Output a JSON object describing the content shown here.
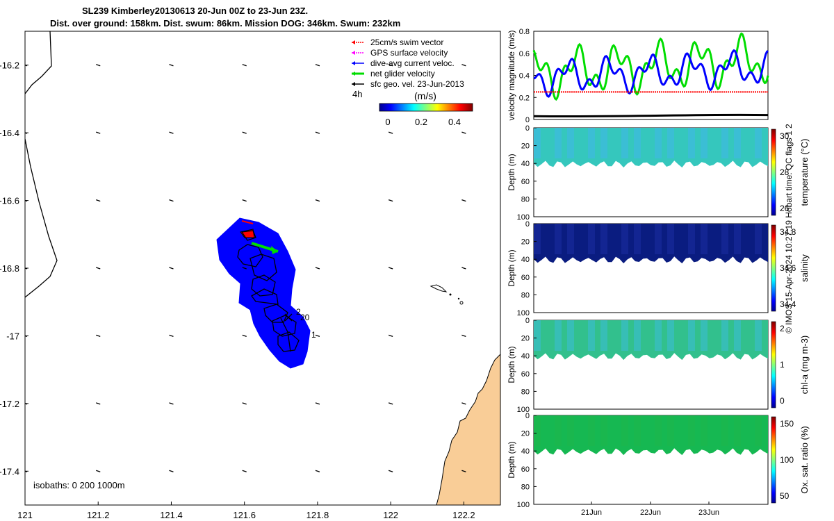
{
  "header": {
    "line1": "SL239 Kimberley20130613 20-Jun 00Z to 23-Jun 23Z.",
    "line2": "Dist. over ground: 158km. Dist. swum: 86km. Mission DOG: 346km. Swum: 232km"
  },
  "legend": {
    "items": [
      {
        "label": "25cm/s swim vector",
        "color": "#ff0000"
      },
      {
        "label": "GPS surface velocity",
        "color": "#ff00ff"
      },
      {
        "label": "dive-avg current veloc.",
        "color": "#0000ff"
      },
      {
        "label": "net glider velocity",
        "color": "#00dd00"
      },
      {
        "label": "sfc geo. vel. 23-Jun-2013",
        "color": "#000000"
      }
    ],
    "time_label": "4h"
  },
  "colorbar": {
    "label": "(m/s)",
    "ticks": [
      "0",
      "0.2",
      "0.4"
    ]
  },
  "isobaths_label": "isobaths: 0   200  1000m",
  "copyright": "© IMOS 15-Apr-2024 10:27:19 Hobart time. QC flags 1  2",
  "chart_data": [
    {
      "type": "scatter",
      "name": "map",
      "xlim": [
        121.0,
        122.3
      ],
      "ylim": [
        -17.5,
        -16.1
      ],
      "xticks": [
        "121",
        "121.2",
        "121.4",
        "121.6",
        "121.8",
        "122",
        "122.2"
      ],
      "yticks": [
        "-16.2",
        "-16.4",
        "-16.6",
        "-16.8",
        "-17",
        "-17.2",
        "-17.4"
      ],
      "annotations": [
        "2",
        "20",
        "1"
      ]
    },
    {
      "type": "line",
      "name": "velocity",
      "ylabel": "velocity magnitude (m/s)",
      "ylim": [
        0,
        0.8
      ],
      "yticks": [
        "0",
        "0.2",
        "0.4",
        "0.6",
        "0.8"
      ],
      "series_colors": [
        "#00dd00",
        "#0000ff",
        "#ff0000",
        "#000000"
      ]
    },
    {
      "type": "heatmap",
      "name": "temperature",
      "ylabel": "Depth (m)",
      "clabel": "temperature (°C)",
      "cticks": [
        "26",
        "28",
        "30"
      ],
      "yticks": [
        "0",
        "20",
        "40",
        "60",
        "80",
        "100"
      ]
    },
    {
      "type": "heatmap",
      "name": "salinity",
      "ylabel": "Depth (m)",
      "clabel": "salinity",
      "cticks": [
        "34.4",
        "34.6",
        "34.8"
      ],
      "yticks": [
        "0",
        "20",
        "40",
        "60",
        "80",
        "100"
      ]
    },
    {
      "type": "heatmap",
      "name": "chla",
      "ylabel": "Depth (m)",
      "clabel": "chl-a (mg m-3)",
      "cticks": [
        "0",
        "1",
        "2"
      ],
      "yticks": [
        "0",
        "20",
        "40",
        "60",
        "80",
        "100"
      ]
    },
    {
      "type": "heatmap",
      "name": "oxygen",
      "ylabel": "Depth (m)",
      "clabel": "Ox. sat. ratio (%)",
      "cticks": [
        "50",
        "100",
        "150"
      ],
      "yticks": [
        "0",
        "20",
        "40",
        "60",
        "80",
        "100"
      ],
      "xticks": [
        "21Jun",
        "22Jun",
        "23Jun"
      ]
    }
  ]
}
